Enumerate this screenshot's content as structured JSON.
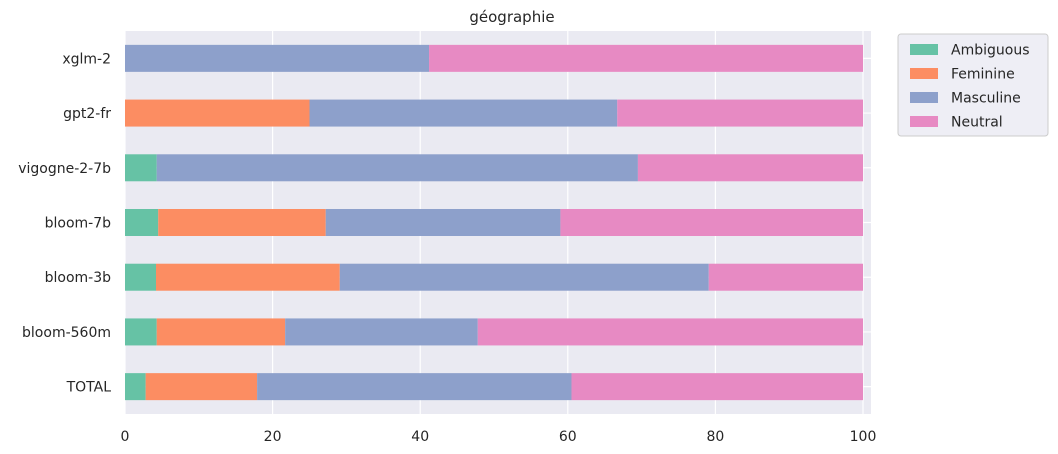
{
  "chart_data": {
    "type": "bar",
    "orientation": "horizontal",
    "stacked": true,
    "title": "géographie",
    "xlabel": "",
    "ylabel": "",
    "xlim": [
      0,
      105
    ],
    "xticks": [
      0,
      20,
      40,
      60,
      80,
      100
    ],
    "grid": true,
    "legend_position": "outside-top-right",
    "categories": [
      "xglm-2",
      "gpt2-fr",
      "vigogne-2-7b",
      "bloom-7b",
      "bloom-3b",
      "bloom-560m",
      "TOTAL"
    ],
    "series": [
      {
        "name": "Ambiguous",
        "color": "#66c2a5",
        "values": [
          0,
          0,
          4.3,
          4.5,
          4.2,
          4.3,
          2.8
        ]
      },
      {
        "name": "Feminine",
        "color": "#fc8d62",
        "values": [
          0,
          25.0,
          0,
          22.7,
          24.9,
          17.4,
          15.1
        ]
      },
      {
        "name": "Masculine",
        "color": "#8da0cb",
        "values": [
          41.2,
          41.7,
          65.2,
          31.8,
          50.0,
          26.1,
          42.6
        ]
      },
      {
        "name": "Neutral",
        "color": "#e78ac3",
        "values": [
          58.8,
          33.3,
          30.5,
          41.0,
          20.9,
          52.2,
          39.5
        ]
      }
    ]
  }
}
